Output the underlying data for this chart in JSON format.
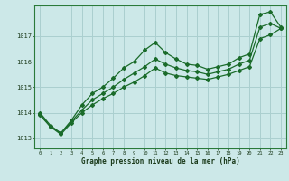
{
  "xlabel": "Graphe pression niveau de la mer (hPa)",
  "bg_color": "#cce8e8",
  "grid_color": "#aacfcf",
  "line_color": "#1a6b2a",
  "xlim": [
    -0.5,
    23.5
  ],
  "ylim": [
    1012.6,
    1018.2
  ],
  "yticks": [
    1013,
    1014,
    1015,
    1016,
    1017
  ],
  "xticks": [
    0,
    1,
    2,
    3,
    4,
    5,
    6,
    7,
    8,
    9,
    10,
    11,
    12,
    13,
    14,
    15,
    16,
    17,
    18,
    19,
    20,
    21,
    22,
    23
  ],
  "series1": [
    1014.0,
    1013.5,
    1013.2,
    1013.7,
    1014.3,
    1014.75,
    1015.0,
    1015.35,
    1015.75,
    1016.0,
    1016.45,
    1016.75,
    1016.35,
    1016.1,
    1015.9,
    1015.85,
    1015.7,
    1015.8,
    1015.9,
    1016.15,
    1016.3,
    1017.85,
    1017.95,
    1017.35
  ],
  "series2": [
    1013.95,
    1013.45,
    1013.2,
    1013.65,
    1014.1,
    1014.5,
    1014.75,
    1015.0,
    1015.3,
    1015.55,
    1015.8,
    1016.1,
    1015.9,
    1015.75,
    1015.65,
    1015.6,
    1015.5,
    1015.6,
    1015.7,
    1015.9,
    1016.05,
    1017.35,
    1017.5,
    1017.3
  ],
  "series3": [
    1013.9,
    1013.45,
    1013.15,
    1013.6,
    1014.0,
    1014.3,
    1014.55,
    1014.75,
    1015.0,
    1015.2,
    1015.45,
    1015.75,
    1015.55,
    1015.45,
    1015.4,
    1015.35,
    1015.3,
    1015.4,
    1015.5,
    1015.65,
    1015.8,
    1016.9,
    1017.05,
    1017.3
  ]
}
